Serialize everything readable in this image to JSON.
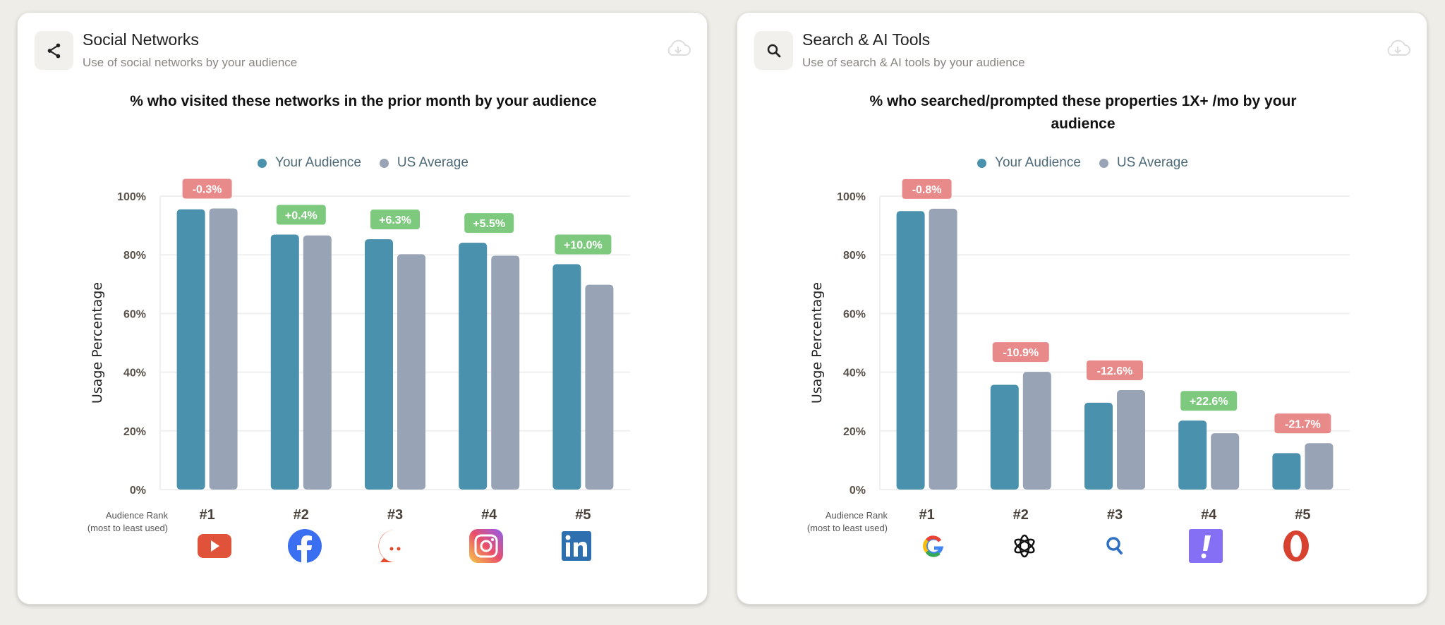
{
  "colors": {
    "your_audience": "#4a91ae",
    "us_average": "#98a4b6",
    "badge_negative": "#e98a8a",
    "badge_positive": "#7dca7e"
  },
  "cards": [
    {
      "icon": "share-icon",
      "title": "Social Networks",
      "subtitle": "Use of social networks by your audience",
      "download_icon": "cloud-download-icon",
      "rank_caption_line1": "Audience Rank",
      "rank_caption_line2": "(most to least used)",
      "logos": [
        "youtube-logo",
        "facebook-logo",
        "reddit-logo",
        "instagram-logo",
        "linkedin-logo"
      ]
    },
    {
      "icon": "search-icon",
      "title": "Search & AI Tools",
      "subtitle": "Use of search & AI tools by your audience",
      "download_icon": "cloud-download-icon",
      "rank_caption_line1": "Audience Rank",
      "rank_caption_line2": "(most to least used)",
      "logos": [
        "google-logo",
        "openai-logo",
        "search-logo",
        "yahoo-logo",
        "opera-logo"
      ]
    }
  ],
  "chart_data": [
    {
      "type": "bar",
      "title": "% who visited these networks in the prior month by your audience",
      "ylabel": "Usage Percentage",
      "ylim": [
        0,
        100
      ],
      "yticks": [
        "0%",
        "20%",
        "40%",
        "60%",
        "80%",
        "100%"
      ],
      "grid": true,
      "legend_position": "top",
      "categories": [
        "#1",
        "#2",
        "#3",
        "#4",
        "#5"
      ],
      "series": [
        {
          "name": "Your Audience",
          "values": [
            95.5,
            86.9,
            85.3,
            84.1,
            76.8
          ]
        },
        {
          "name": "US Average",
          "values": [
            95.8,
            86.6,
            80.2,
            79.7,
            69.8
          ]
        }
      ],
      "diff_labels": [
        "-0.3%",
        "+0.4%",
        "+6.3%",
        "+5.5%",
        "+10.0%"
      ]
    },
    {
      "type": "bar",
      "title": "% who searched/prompted these properties 1X+ /mo by your audience",
      "ylabel": "Usage Percentage",
      "ylim": [
        0,
        100
      ],
      "yticks": [
        "0%",
        "20%",
        "40%",
        "60%",
        "80%",
        "100%"
      ],
      "grid": true,
      "legend_position": "top",
      "categories": [
        "#1",
        "#2",
        "#3",
        "#4",
        "#5"
      ],
      "series": [
        {
          "name": "Your Audience",
          "values": [
            94.9,
            35.7,
            29.6,
            23.5,
            12.4
          ]
        },
        {
          "name": "US Average",
          "values": [
            95.7,
            40.1,
            33.9,
            19.2,
            15.8
          ]
        }
      ],
      "diff_labels": [
        "-0.8%",
        "-10.9%",
        "-12.6%",
        "+22.6%",
        "-21.7%"
      ]
    }
  ]
}
